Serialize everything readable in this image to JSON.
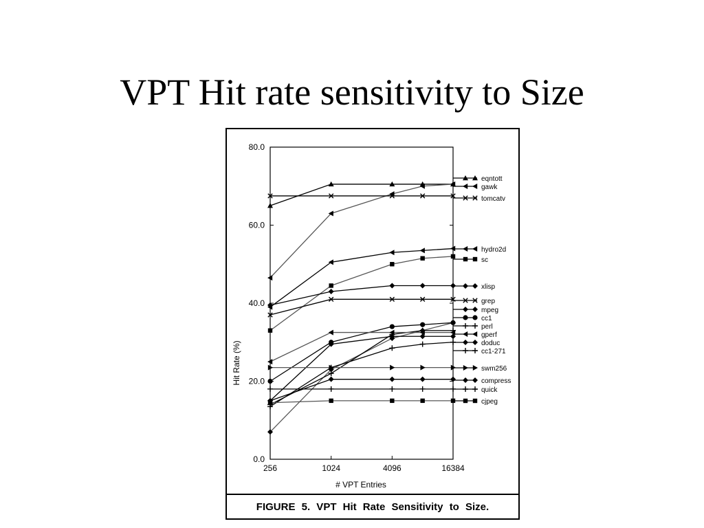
{
  "slide": {
    "title": "VPT Hit rate sensitivity to Size"
  },
  "figure": {
    "caption": "FIGURE 5. VPT Hit Rate Sensitivity to Size."
  },
  "chart_data": {
    "type": "line",
    "xlabel": "# VPT Entries",
    "ylabel": "Hit Rate (%)",
    "x": [
      256,
      1024,
      4096,
      8192,
      16384
    ],
    "x_ticks": [
      "256",
      "1024",
      "4096",
      "16384"
    ],
    "y_ticks": [
      "0.0",
      "20.0",
      "40.0",
      "60.0",
      "80.0"
    ],
    "ylim": [
      0,
      80
    ],
    "x_scale": "log2",
    "grid": false,
    "legend_position": "right",
    "series": [
      {
        "name": "eqntott",
        "marker": "triangle-up",
        "values": [
          65,
          70.5,
          70.5,
          70.5,
          70.5
        ]
      },
      {
        "name": "gawk",
        "marker": "triangle-left",
        "values": [
          46.5,
          63,
          68,
          70,
          70.5
        ]
      },
      {
        "name": "tomcatv",
        "marker": "x",
        "values": [
          67.5,
          67.5,
          67.5,
          67.5,
          67.5
        ]
      },
      {
        "name": "hydro2d",
        "marker": "triangle-left",
        "values": [
          39,
          50.5,
          53,
          53.5,
          54
        ]
      },
      {
        "name": "sc",
        "marker": "square",
        "values": [
          33,
          44.5,
          50,
          51.5,
          52
        ]
      },
      {
        "name": "xlisp",
        "marker": "diamond",
        "values": [
          39.5,
          43,
          44.5,
          44.5,
          44.5
        ]
      },
      {
        "name": "grep",
        "marker": "x",
        "values": [
          37,
          41,
          41,
          41,
          41
        ]
      },
      {
        "name": "mpeg",
        "marker": "diamond",
        "values": [
          7,
          23,
          31,
          33,
          35
        ]
      },
      {
        "name": "cc1",
        "marker": "circle",
        "values": [
          20,
          30,
          34,
          34.5,
          35
        ]
      },
      {
        "name": "perl",
        "marker": "plus",
        "values": [
          14,
          22,
          32,
          33,
          33
        ]
      },
      {
        "name": "gperf",
        "marker": "triangle-left",
        "values": [
          25,
          32.5,
          32.5,
          32.5,
          32.5
        ]
      },
      {
        "name": "doduc",
        "marker": "diamond",
        "values": [
          15,
          29.5,
          31.5,
          31.5,
          31.5
        ]
      },
      {
        "name": "cc1-271",
        "marker": "plus",
        "values": [
          13.5,
          23.5,
          28.5,
          29.5,
          30
        ]
      },
      {
        "name": "swm256",
        "marker": "triangle-right",
        "values": [
          23.5,
          23.5,
          23.5,
          23.5,
          23.5
        ]
      },
      {
        "name": "compress",
        "marker": "diamond",
        "values": [
          15,
          20.5,
          20.5,
          20.5,
          20.5
        ]
      },
      {
        "name": "quick",
        "marker": "plus",
        "values": [
          18,
          18,
          18,
          18,
          18
        ]
      },
      {
        "name": "cjpeg",
        "marker": "square",
        "values": [
          14.5,
          15,
          15,
          15,
          15
        ]
      }
    ]
  }
}
